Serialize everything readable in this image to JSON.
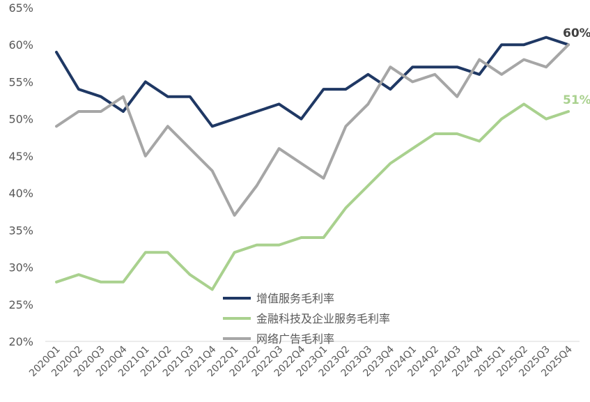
{
  "chart_data": {
    "type": "line",
    "title": "",
    "xlabel": "",
    "ylabel": "",
    "x": [
      "2020Q1",
      "2020Q2",
      "2020Q3",
      "2020Q4",
      "2021Q1",
      "2021Q2",
      "2021Q3",
      "2021Q4",
      "2022Q1",
      "2022Q2",
      "2022Q3",
      "2022Q4",
      "2023Q1",
      "2023Q2",
      "2023Q3",
      "2023Q4",
      "2024Q1",
      "2024Q2",
      "2024Q3",
      "2024Q4",
      "2025Q1",
      "2025Q2",
      "2025Q3",
      "2025Q4"
    ],
    "ylim": [
      20,
      65
    ],
    "yticks": [
      20,
      25,
      30,
      35,
      40,
      45,
      50,
      55,
      60,
      65
    ],
    "ytick_labels": [
      "20%",
      "25%",
      "30%",
      "35%",
      "40%",
      "45%",
      "50%",
      "55%",
      "60%",
      "65%"
    ],
    "grid": false,
    "legend_position": "bottom-center",
    "series": [
      {
        "name": "增值服务毛利率",
        "color": "#1f3864",
        "values": [
          59,
          54,
          53,
          51,
          55,
          53,
          53,
          49,
          50,
          51,
          52,
          50,
          54,
          54,
          56,
          54,
          57,
          57,
          57,
          56,
          60,
          60,
          61,
          60
        ],
        "end_label": "60%",
        "end_label_color": "#404040"
      },
      {
        "name": "金融科技及企业服务毛利率",
        "color": "#a9d18e",
        "values": [
          28,
          29,
          28,
          28,
          32,
          32,
          29,
          27,
          32,
          33,
          33,
          34,
          34,
          38,
          41,
          44,
          46,
          48,
          48,
          47,
          50,
          52,
          50,
          51
        ],
        "end_label": "51%",
        "end_label_color": "#a9d18e"
      },
      {
        "name": "网络广告毛利率",
        "color": "#a6a6a6",
        "values": [
          49,
          51,
          51,
          53,
          45,
          49,
          46,
          43,
          37,
          41,
          46,
          44,
          42,
          49,
          52,
          57,
          55,
          56,
          53,
          58,
          56,
          58,
          57,
          60
        ]
      }
    ]
  }
}
